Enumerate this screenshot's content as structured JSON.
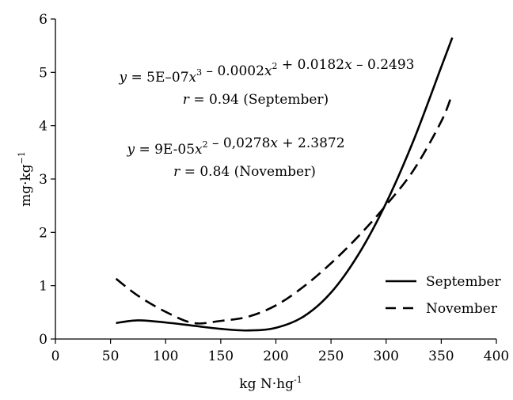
{
  "chart_data": {
    "type": "line",
    "title": "",
    "xlabel": {
      "text": "kg N·hg",
      "sup": "-1"
    },
    "ylabel": {
      "text": "mg·kg",
      "sup": "−1"
    },
    "xlim": [
      0,
      400
    ],
    "ylim": [
      0,
      6
    ],
    "x_ticks": [
      0,
      50,
      100,
      150,
      200,
      250,
      300,
      350,
      400
    ],
    "y_ticks": [
      0,
      1,
      2,
      3,
      4,
      5,
      6
    ],
    "grid": false,
    "legend_position": "bottom-right",
    "x_range": [
      55,
      360
    ],
    "series": [
      {
        "name": "September",
        "style": "solid",
        "equation": "y = 5E-07x^3 - 0.0002x^2 + 0.0182x - 0.2493",
        "x": [
          55,
          75,
          100,
          125,
          150,
          175,
          200,
          225,
          250,
          275,
          300,
          325,
          350,
          360
        ],
        "y": [
          0.3,
          0.35,
          0.31,
          0.25,
          0.19,
          0.16,
          0.21,
          0.42,
          0.87,
          1.59,
          2.55,
          3.73,
          5.1,
          5.65
        ]
      },
      {
        "name": "November",
        "style": "dashed",
        "equation": "y = 9E-05x^2 - 0,0278x + 2.3872",
        "x": [
          55,
          75,
          100,
          125,
          150,
          175,
          200,
          225,
          250,
          275,
          300,
          325,
          350,
          360
        ],
        "y": [
          1.13,
          0.81,
          0.51,
          0.3,
          0.34,
          0.42,
          0.63,
          0.98,
          1.42,
          1.93,
          2.51,
          3.17,
          4.08,
          4.6
        ]
      }
    ],
    "annotations": [
      {
        "lines": [
          {
            "parts": [
              [
                "i",
                "y"
              ],
              [
                "t",
                " = 5E–07"
              ],
              [
                "i",
                "x"
              ],
              [
                "s",
                "3"
              ],
              [
                "t",
                " – 0.0002"
              ],
              [
                "i",
                "x"
              ],
              [
                "s",
                "2"
              ],
              [
                "t",
                " + 0.0182"
              ],
              [
                "i",
                "x"
              ],
              [
                "t",
                " – 0.2493"
              ]
            ]
          },
          {
            "parts": [
              [
                "i",
                "r"
              ],
              [
                "t",
                " = 0.94 (September)"
              ]
            ]
          }
        ]
      },
      {
        "lines": [
          {
            "parts": [
              [
                "i",
                "y"
              ],
              [
                "t",
                " = 9E-05"
              ],
              [
                "i",
                "x"
              ],
              [
                "s",
                "2"
              ],
              [
                "t",
                " – 0,0278"
              ],
              [
                "i",
                "x"
              ],
              [
                "t",
                " + 2.3872"
              ]
            ]
          },
          {
            "parts": [
              [
                "i",
                "r"
              ],
              [
                "t",
                " = 0.84 (November)"
              ]
            ]
          }
        ]
      }
    ]
  }
}
